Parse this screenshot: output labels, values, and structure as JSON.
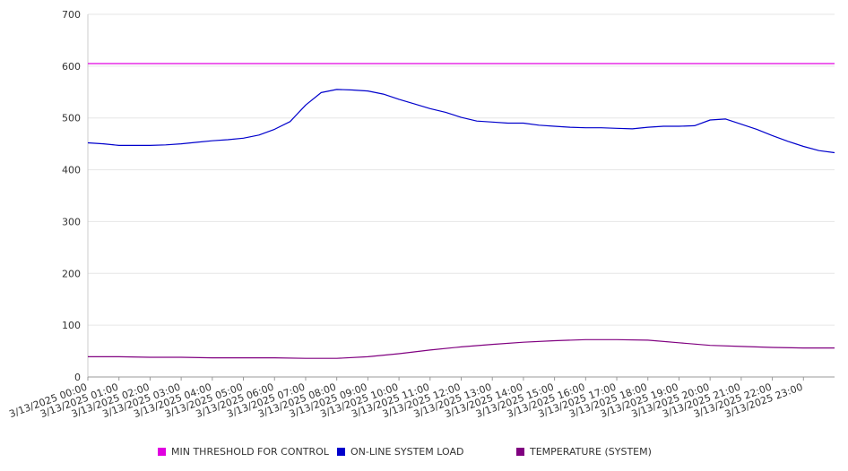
{
  "chart_data": {
    "type": "line",
    "title": "",
    "xlabel": "",
    "ylabel": "",
    "ylim": [
      0,
      700
    ],
    "yticks": [
      "0",
      "100",
      "200",
      "300",
      "400",
      "500",
      "600",
      "700"
    ],
    "xlim": [
      "3/13/2025 00:00",
      "3/13/2025 24:00"
    ],
    "xticks": [
      "3/13/2025 00:00",
      "3/13/2025 01:00",
      "3/13/2025 02:00",
      "3/13/2025 03:00",
      "3/13/2025 04:00",
      "3/13/2025 05:00",
      "3/13/2025 06:00",
      "3/13/2025 07:00",
      "3/13/2025 08:00",
      "3/13/2025 09:00",
      "3/13/2025 10:00",
      "3/13/2025 11:00",
      "3/13/2025 12:00",
      "3/13/2025 13:00",
      "3/13/2025 14:00",
      "3/13/2025 15:00",
      "3/13/2025 16:00",
      "3/13/2025 17:00",
      "3/13/2025 18:00",
      "3/13/2025 19:00",
      "3/13/2025 20:00",
      "3/13/2025 21:00",
      "3/13/2025 22:00",
      "3/13/2025 23:00"
    ],
    "grid": "horizontal",
    "legend_position": "bottom",
    "series": [
      {
        "name": "MIN THRESHOLD FOR CONTROL",
        "color": "#e000e0",
        "x": [
          "3/13/2025 00:00",
          "3/13/2025 24:00"
        ],
        "values": [
          605,
          605
        ]
      },
      {
        "name": "ON-LINE SYSTEM LOAD",
        "color": "#0000cc",
        "x": [
          "3/13/2025 00:00",
          "3/13/2025 00:30",
          "3/13/2025 01:00",
          "3/13/2025 01:30",
          "3/13/2025 02:00",
          "3/13/2025 02:30",
          "3/13/2025 03:00",
          "3/13/2025 03:30",
          "3/13/2025 04:00",
          "3/13/2025 04:30",
          "3/13/2025 05:00",
          "3/13/2025 05:30",
          "3/13/2025 06:00",
          "3/13/2025 06:30",
          "3/13/2025 07:00",
          "3/13/2025 07:30",
          "3/13/2025 08:00",
          "3/13/2025 08:30",
          "3/13/2025 09:00",
          "3/13/2025 09:30",
          "3/13/2025 10:00",
          "3/13/2025 10:30",
          "3/13/2025 11:00",
          "3/13/2025 11:30",
          "3/13/2025 12:00",
          "3/13/2025 12:30",
          "3/13/2025 13:00",
          "3/13/2025 13:30",
          "3/13/2025 14:00",
          "3/13/2025 14:30",
          "3/13/2025 15:00",
          "3/13/2025 15:30",
          "3/13/2025 16:00",
          "3/13/2025 16:30",
          "3/13/2025 17:00",
          "3/13/2025 17:30",
          "3/13/2025 18:00",
          "3/13/2025 18:30",
          "3/13/2025 19:00",
          "3/13/2025 19:30",
          "3/13/2025 20:00",
          "3/13/2025 20:30",
          "3/13/2025 21:00",
          "3/13/2025 21:30",
          "3/13/2025 22:00",
          "3/13/2025 22:30",
          "3/13/2025 23:00",
          "3/13/2025 23:30",
          "3/13/2025 24:00"
        ],
        "values": [
          452,
          450,
          447,
          447,
          447,
          448,
          450,
          453,
          456,
          458,
          461,
          467,
          478,
          493,
          525,
          549,
          555,
          554,
          552,
          546,
          536,
          527,
          518,
          511,
          501,
          494,
          492,
          490,
          490,
          486,
          484,
          482,
          481,
          481,
          480,
          479,
          482,
          484,
          484,
          485,
          496,
          498,
          488,
          478,
          466,
          455,
          445,
          437,
          433
        ]
      },
      {
        "name": "TEMPERATURE (SYSTEM)",
        "color": "#800080",
        "x": [
          "3/13/2025 00:00",
          "3/13/2025 01:00",
          "3/13/2025 02:00",
          "3/13/2025 03:00",
          "3/13/2025 04:00",
          "3/13/2025 05:00",
          "3/13/2025 06:00",
          "3/13/2025 07:00",
          "3/13/2025 08:00",
          "3/13/2025 09:00",
          "3/13/2025 10:00",
          "3/13/2025 11:00",
          "3/13/2025 12:00",
          "3/13/2025 13:00",
          "3/13/2025 14:00",
          "3/13/2025 15:00",
          "3/13/2025 16:00",
          "3/13/2025 17:00",
          "3/13/2025 18:00",
          "3/13/2025 19:00",
          "3/13/2025 20:00",
          "3/13/2025 21:00",
          "3/13/2025 22:00",
          "3/13/2025 23:00",
          "3/13/2025 24:00"
        ],
        "values": [
          39,
          39,
          38,
          38,
          37,
          37,
          37,
          36,
          36,
          39,
          45,
          52,
          58,
          63,
          67,
          70,
          72,
          72,
          71,
          66,
          61,
          59,
          57,
          56,
          56
        ]
      }
    ]
  }
}
